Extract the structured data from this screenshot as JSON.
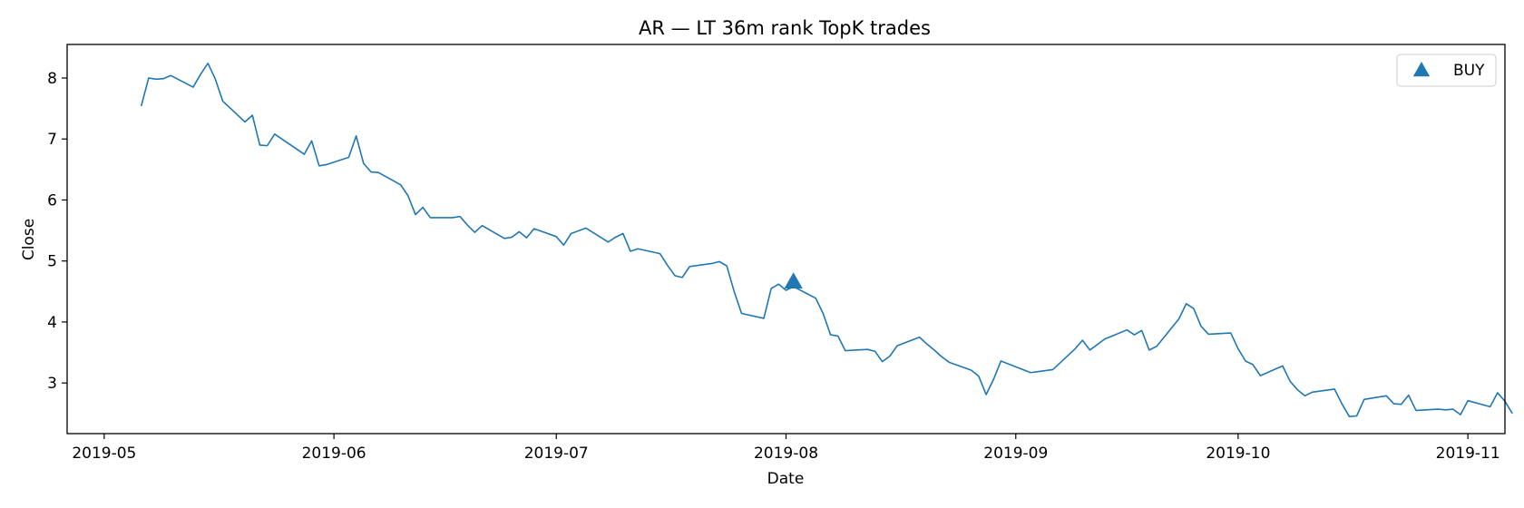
{
  "chart_data": {
    "type": "line",
    "title": "AR — LT 36m rank TopK trades",
    "xlabel": "Date",
    "ylabel": "Close",
    "x_ticks": [
      "2019-05",
      "2019-06",
      "2019-07",
      "2019-08",
      "2019-09",
      "2019-10",
      "2019-11"
    ],
    "y_ticks": [
      3,
      4,
      5,
      6,
      7,
      8
    ],
    "xlim": [
      "2019-04-26",
      "2019-11-06"
    ],
    "ylim": [
      2.17,
      8.55
    ],
    "grid": false,
    "legend": {
      "position": "top-right",
      "entries": [
        {
          "label": "BUY",
          "marker": "triangle-up",
          "color": "#1f77b4"
        }
      ]
    },
    "series": [
      {
        "color": "#1f77b4",
        "points": [
          [
            "2019-05-06",
            7.54
          ],
          [
            "2019-05-07",
            8.0
          ],
          [
            "2019-05-08",
            7.98
          ],
          [
            "2019-05-09",
            7.99
          ],
          [
            "2019-05-10",
            8.04
          ],
          [
            "2019-05-13",
            7.85
          ],
          [
            "2019-05-14",
            8.06
          ],
          [
            "2019-05-15",
            8.24
          ],
          [
            "2019-05-16",
            7.98
          ],
          [
            "2019-05-17",
            7.62
          ],
          [
            "2019-05-20",
            7.28
          ],
          [
            "2019-05-21",
            7.39
          ],
          [
            "2019-05-22",
            6.9
          ],
          [
            "2019-05-23",
            6.89
          ],
          [
            "2019-05-24",
            7.08
          ],
          [
            "2019-05-28",
            6.75
          ],
          [
            "2019-05-29",
            6.97
          ],
          [
            "2019-05-30",
            6.56
          ],
          [
            "2019-05-31",
            6.58
          ],
          [
            "2019-06-03",
            6.7
          ],
          [
            "2019-06-04",
            7.05
          ],
          [
            "2019-06-05",
            6.6
          ],
          [
            "2019-06-06",
            6.46
          ],
          [
            "2019-06-07",
            6.45
          ],
          [
            "2019-06-10",
            6.25
          ],
          [
            "2019-06-11",
            6.07
          ],
          [
            "2019-06-12",
            5.76
          ],
          [
            "2019-06-13",
            5.88
          ],
          [
            "2019-06-14",
            5.71
          ],
          [
            "2019-06-17",
            5.71
          ],
          [
            "2019-06-18",
            5.73
          ],
          [
            "2019-06-19",
            5.59
          ],
          [
            "2019-06-20",
            5.47
          ],
          [
            "2019-06-21",
            5.58
          ],
          [
            "2019-06-24",
            5.37
          ],
          [
            "2019-06-25",
            5.39
          ],
          [
            "2019-06-26",
            5.48
          ],
          [
            "2019-06-27",
            5.38
          ],
          [
            "2019-06-28",
            5.53
          ],
          [
            "2019-07-01",
            5.4
          ],
          [
            "2019-07-02",
            5.26
          ],
          [
            "2019-07-03",
            5.45
          ],
          [
            "2019-07-05",
            5.54
          ],
          [
            "2019-07-08",
            5.31
          ],
          [
            "2019-07-09",
            5.39
          ],
          [
            "2019-07-10",
            5.45
          ],
          [
            "2019-07-11",
            5.16
          ],
          [
            "2019-07-12",
            5.2
          ],
          [
            "2019-07-15",
            5.12
          ],
          [
            "2019-07-16",
            4.93
          ],
          [
            "2019-07-17",
            4.76
          ],
          [
            "2019-07-18",
            4.73
          ],
          [
            "2019-07-19",
            4.91
          ],
          [
            "2019-07-22",
            4.96
          ],
          [
            "2019-07-23",
            4.99
          ],
          [
            "2019-07-24",
            4.92
          ],
          [
            "2019-07-25",
            4.5
          ],
          [
            "2019-07-26",
            4.14
          ],
          [
            "2019-07-29",
            4.06
          ],
          [
            "2019-07-30",
            4.55
          ],
          [
            "2019-07-31",
            4.62
          ],
          [
            "2019-08-01",
            4.52
          ],
          [
            "2019-08-02",
            4.58
          ],
          [
            "2019-08-05",
            4.39
          ],
          [
            "2019-08-06",
            4.14
          ],
          [
            "2019-08-07",
            3.79
          ],
          [
            "2019-08-08",
            3.77
          ],
          [
            "2019-08-09",
            3.53
          ],
          [
            "2019-08-12",
            3.55
          ],
          [
            "2019-08-13",
            3.52
          ],
          [
            "2019-08-14",
            3.35
          ],
          [
            "2019-08-15",
            3.44
          ],
          [
            "2019-08-16",
            3.61
          ],
          [
            "2019-08-19",
            3.75
          ],
          [
            "2019-08-20",
            3.64
          ],
          [
            "2019-08-21",
            3.54
          ],
          [
            "2019-08-22",
            3.43
          ],
          [
            "2019-08-23",
            3.34
          ],
          [
            "2019-08-26",
            3.21
          ],
          [
            "2019-08-27",
            3.11
          ],
          [
            "2019-08-28",
            2.81
          ],
          [
            "2019-08-29",
            3.06
          ],
          [
            "2019-08-30",
            3.36
          ],
          [
            "2019-09-03",
            3.17
          ],
          [
            "2019-09-06",
            3.22
          ],
          [
            "2019-09-09",
            3.56
          ],
          [
            "2019-09-10",
            3.7
          ],
          [
            "2019-09-11",
            3.54
          ],
          [
            "2019-09-13",
            3.72
          ],
          [
            "2019-09-16",
            3.87
          ],
          [
            "2019-09-17",
            3.79
          ],
          [
            "2019-09-18",
            3.86
          ],
          [
            "2019-09-19",
            3.54
          ],
          [
            "2019-09-20",
            3.6
          ],
          [
            "2019-09-23",
            4.05
          ],
          [
            "2019-09-24",
            4.3
          ],
          [
            "2019-09-25",
            4.22
          ],
          [
            "2019-09-26",
            3.93
          ],
          [
            "2019-09-27",
            3.8
          ],
          [
            "2019-09-30",
            3.82
          ],
          [
            "2019-10-01",
            3.56
          ],
          [
            "2019-10-02",
            3.36
          ],
          [
            "2019-10-03",
            3.3
          ],
          [
            "2019-10-04",
            3.12
          ],
          [
            "2019-10-07",
            3.28
          ],
          [
            "2019-10-08",
            3.03
          ],
          [
            "2019-10-09",
            2.89
          ],
          [
            "2019-10-10",
            2.79
          ],
          [
            "2019-10-11",
            2.85
          ],
          [
            "2019-10-14",
            2.9
          ],
          [
            "2019-10-15",
            2.66
          ],
          [
            "2019-10-16",
            2.45
          ],
          [
            "2019-10-17",
            2.46
          ],
          [
            "2019-10-18",
            2.73
          ],
          [
            "2019-10-21",
            2.79
          ],
          [
            "2019-10-22",
            2.66
          ],
          [
            "2019-10-23",
            2.65
          ],
          [
            "2019-10-24",
            2.8
          ],
          [
            "2019-10-25",
            2.55
          ],
          [
            "2019-10-28",
            2.57
          ],
          [
            "2019-10-29",
            2.56
          ],
          [
            "2019-10-30",
            2.57
          ],
          [
            "2019-10-31",
            2.48
          ],
          [
            "2019-11-01",
            2.71
          ],
          [
            "2019-11-04",
            2.61
          ],
          [
            "2019-11-05",
            2.84
          ],
          [
            "2019-11-06",
            2.7
          ],
          [
            "2019-11-07",
            2.5
          ]
        ]
      }
    ],
    "markers": [
      {
        "label": "BUY",
        "x": "2019-08-02",
        "y": 4.65,
        "shape": "triangle-up",
        "color": "#1f77b4"
      }
    ]
  }
}
